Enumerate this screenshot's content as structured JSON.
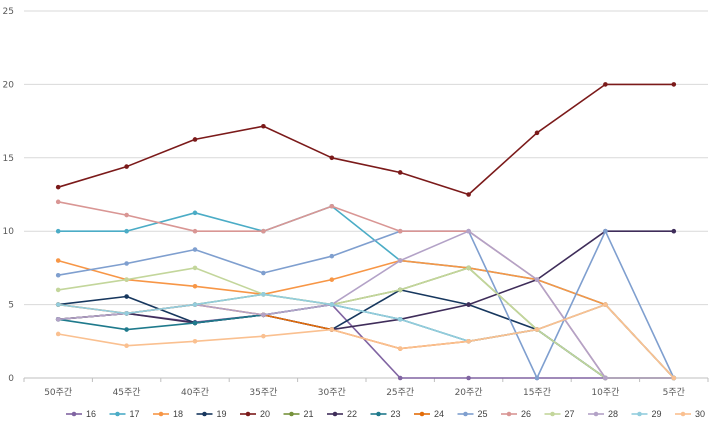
{
  "chart_data": {
    "type": "line",
    "categories": [
      "50주간",
      "45주간",
      "40주간",
      "35주간",
      "30주간",
      "25주간",
      "20주간",
      "15주간",
      "10주간",
      "5주간"
    ],
    "ylim": [
      0,
      25
    ],
    "yticks": [
      0,
      5,
      10,
      15,
      20,
      25
    ],
    "grid": "horizontal",
    "legend_position": "bottom",
    "series": [
      {
        "name": "16",
        "color": "#8064a2",
        "values": [
          4,
          4.4,
          3.8,
          4.3,
          5,
          0,
          0,
          0,
          0,
          0
        ]
      },
      {
        "name": "17",
        "color": "#4bacc6",
        "values": [
          10,
          10,
          11.25,
          10,
          11.7,
          8,
          7.5,
          6.7,
          5,
          0
        ]
      },
      {
        "name": "18",
        "color": "#f79646",
        "values": [
          8,
          6.7,
          6.25,
          5.7,
          6.7,
          8,
          7.5,
          6.7,
          5,
          0
        ]
      },
      {
        "name": "19",
        "color": "#17375e",
        "values": [
          5,
          5.55,
          3.75,
          4.3,
          3.3,
          6,
          5,
          3.3,
          0,
          0
        ]
      },
      {
        "name": "20",
        "color": "#7b1a1a",
        "values": [
          13,
          14.4,
          16.25,
          17.15,
          15,
          14,
          12.5,
          16.7,
          20,
          20
        ]
      },
      {
        "name": "21",
        "color": "#76923c",
        "values": [
          4,
          4.4,
          5,
          5.7,
          5,
          6,
          7.5,
          3.3,
          0,
          0
        ]
      },
      {
        "name": "22",
        "color": "#3f2d5a",
        "values": [
          4,
          4.4,
          3.75,
          4.3,
          3.3,
          4,
          5,
          6.7,
          10,
          10
        ]
      },
      {
        "name": "23",
        "color": "#1f7a8c",
        "values": [
          4,
          3.3,
          3.75,
          4.3,
          5,
          4,
          2.5,
          3.3,
          0,
          0
        ]
      },
      {
        "name": "24",
        "color": "#e36c09",
        "values": [
          5,
          4.4,
          5,
          4.3,
          3.3,
          2,
          2.5,
          3.3,
          5,
          0
        ]
      },
      {
        "name": "25",
        "color": "#7f9fcf",
        "values": [
          7,
          7.8,
          8.75,
          7.15,
          8.3,
          10,
          10,
          0,
          10,
          0
        ]
      },
      {
        "name": "26",
        "color": "#d99694",
        "values": [
          12,
          11.1,
          10,
          10,
          11.7,
          10,
          10,
          6.7,
          0,
          0
        ]
      },
      {
        "name": "27",
        "color": "#c3d69b",
        "values": [
          6,
          6.7,
          7.5,
          5.7,
          5,
          6,
          7.5,
          3.3,
          0,
          0
        ]
      },
      {
        "name": "28",
        "color": "#b3a2c7",
        "values": [
          4,
          4.4,
          5,
          4.3,
          5,
          8,
          10,
          6.7,
          0,
          0
        ]
      },
      {
        "name": "29",
        "color": "#93cddd",
        "values": [
          5,
          4.4,
          5,
          5.7,
          5,
          4,
          2.5,
          3.3,
          5,
          0
        ]
      },
      {
        "name": "30",
        "color": "#fac090",
        "values": [
          3,
          2.2,
          2.5,
          2.85,
          3.3,
          2,
          2.5,
          3.3,
          5,
          0
        ]
      }
    ]
  }
}
